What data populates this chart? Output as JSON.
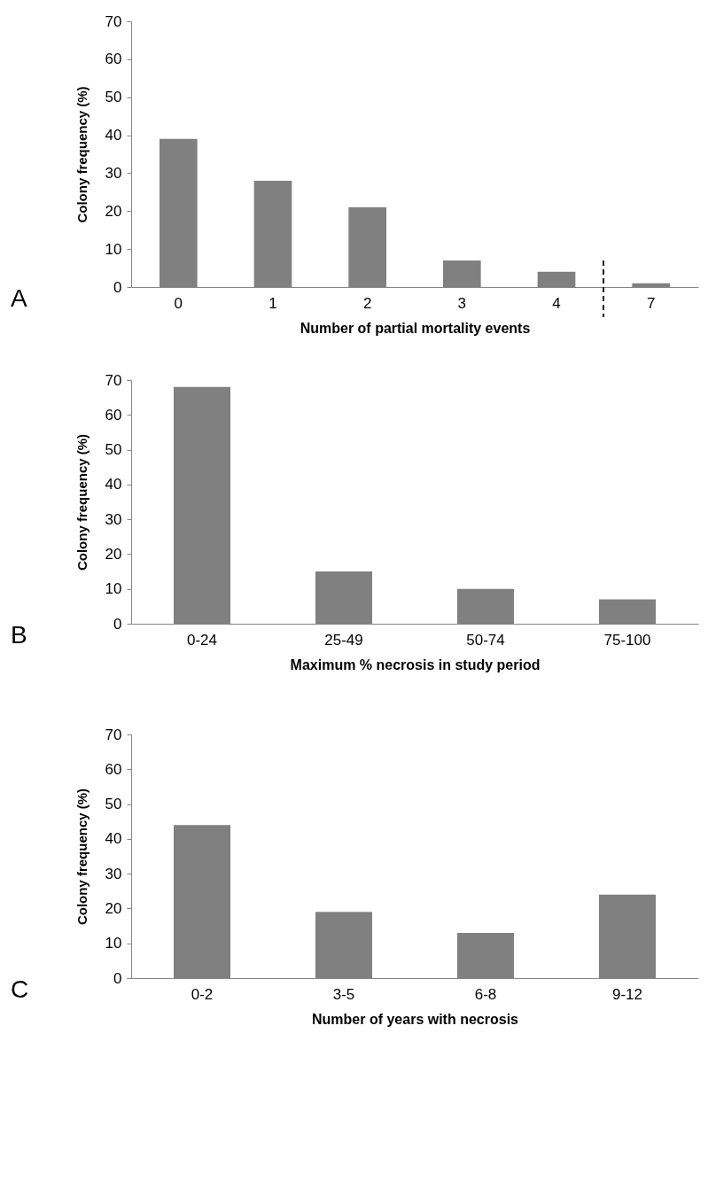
{
  "chart_data": [
    {
      "type": "bar",
      "categories": [
        "0",
        "1",
        "2",
        "3",
        "4",
        "7"
      ],
      "values": [
        39,
        28,
        21,
        7,
        4,
        1
      ],
      "color": "#808080",
      "ylim": [
        0,
        70
      ],
      "yticks": [
        0,
        10,
        20,
        30,
        40,
        50,
        60,
        70
      ],
      "xlabel": "Number of partial mortality events",
      "ylabel": "Colony frequency (%)",
      "annotations": [
        "A"
      ]
    },
    {
      "type": "bar",
      "categories": [
        "0-24",
        "25-49",
        "50-74",
        "75-100"
      ],
      "values": [
        68,
        15,
        10,
        7
      ],
      "color": "#808080",
      "ylim": [
        0,
        70
      ],
      "yticks": [
        0,
        10,
        20,
        30,
        40,
        50,
        60,
        70
      ],
      "xlabel": "Maximum % necrosis in study period",
      "ylabel": "Colony frequency (%)",
      "annotations": [
        "B"
      ]
    },
    {
      "type": "bar",
      "categories": [
        "0-2",
        "3-5",
        "6-8",
        "9-12"
      ],
      "values": [
        44,
        19,
        13,
        24
      ],
      "color": "#808080",
      "ylim": [
        0,
        70
      ],
      "yticks": [
        0,
        10,
        20,
        30,
        40,
        50,
        60,
        70
      ],
      "xlabel": "Number of years with necrosis",
      "ylabel": "Colony frequency (%)",
      "annotations": [
        "C"
      ]
    }
  ]
}
